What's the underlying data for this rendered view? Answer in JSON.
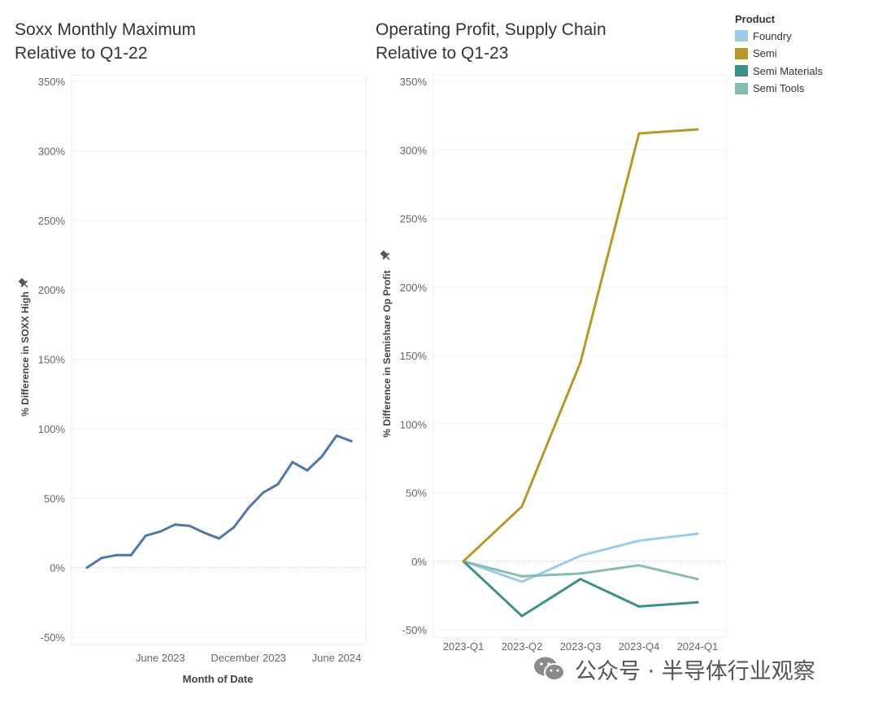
{
  "chart_data": [
    {
      "type": "line",
      "title_line1": "Soxx Monthly Maximum",
      "title_line2": "Relative to Q1-22",
      "xlabel": "Month of Date",
      "ylabel": "% Difference in SOXX High",
      "y_ticks": [
        "350%",
        "300%",
        "250%",
        "200%",
        "150%",
        "100%",
        "50%",
        "0%",
        "-50%"
      ],
      "ylim": [
        -50,
        350
      ],
      "x_ticks": [
        {
          "label": "June 2023",
          "month_index": 5
        },
        {
          "label": "December 2023",
          "month_index": 11
        },
        {
          "label": "June 2024",
          "month_index": 17
        }
      ],
      "series": [
        {
          "name": "SOXX",
          "color": "#4e79a7",
          "months": [
            "2023-01",
            "2023-02",
            "2023-03",
            "2023-04",
            "2023-05",
            "2023-06",
            "2023-07",
            "2023-08",
            "2023-09",
            "2023-10",
            "2023-11",
            "2023-12",
            "2024-01",
            "2024-02",
            "2024-03",
            "2024-04",
            "2024-05",
            "2024-06",
            "2024-07"
          ],
          "values": [
            0,
            7,
            9,
            9,
            23,
            26,
            31,
            30,
            25,
            21,
            29,
            43,
            54,
            60,
            76,
            70,
            80,
            95,
            91
          ]
        }
      ]
    },
    {
      "type": "line",
      "title_line1": "Operating Profit, Supply Chain",
      "title_line2": "Relative to Q1-23",
      "ylabel": "% Difference in Semishare Op Profit",
      "y_ticks": [
        "350%",
        "300%",
        "250%",
        "200%",
        "150%",
        "100%",
        "50%",
        "0%",
        "-50%"
      ],
      "ylim": [
        -50,
        350
      ],
      "categories": [
        "2023-Q1",
        "2023-Q2",
        "2023-Q3",
        "2023-Q4",
        "2024-Q1"
      ],
      "legend_title": "Product",
      "series": [
        {
          "name": "Foundry",
          "color": "#a0cbe8",
          "values": [
            0,
            -15,
            4,
            15,
            20
          ]
        },
        {
          "name": "Semi",
          "color": "#b59a2b",
          "values": [
            0,
            40,
            145,
            312,
            315
          ]
        },
        {
          "name": "Semi Materials",
          "color": "#3d8f87",
          "values": [
            0,
            -40,
            -13,
            -33,
            -30
          ]
        },
        {
          "name": "Semi Tools",
          "color": "#86bcb6",
          "values": [
            0,
            -11,
            -9,
            -3,
            -13
          ]
        }
      ]
    }
  ],
  "watermark": {
    "text": "公众号 · 半导体行业观察",
    "icon": "wechat-icon"
  }
}
